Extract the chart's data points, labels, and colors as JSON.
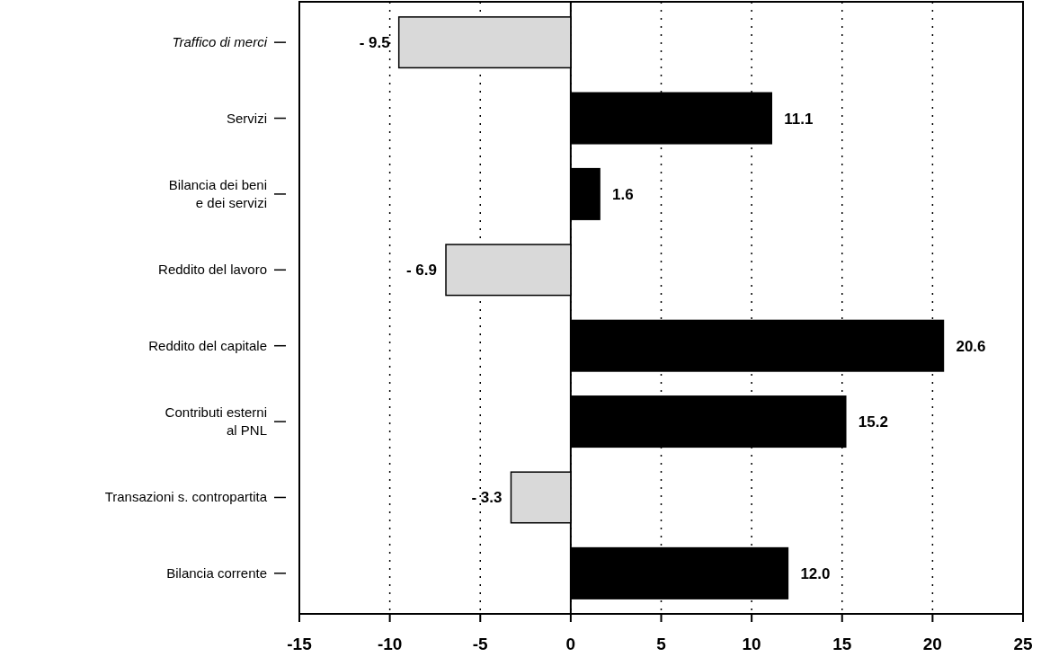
{
  "chart_data": {
    "type": "bar",
    "orientation": "horizontal",
    "categories": [
      "Traffico di merci",
      "Servizi",
      "Bilancia dei beni\ne dei servizi",
      "Reddito del lavoro",
      "Reddito del capitale",
      "Contributi esterni\nal PNL",
      "Transazioni s. contropartita",
      "Bilancia corrente"
    ],
    "values": [
      -9.5,
      11.1,
      1.6,
      -6.9,
      20.6,
      15.2,
      -3.3,
      12.0
    ],
    "colors": [
      "#d9d9d9",
      "#000000",
      "#000000",
      "#d9d9d9",
      "#000000",
      "#000000",
      "#d9d9d9",
      "#000000"
    ],
    "value_labels": [
      "- 9.5",
      "11.1",
      "1.6",
      "- 6.9",
      "20.6",
      "15.2",
      "- 3.3",
      "12.0"
    ],
    "xlim": [
      -15,
      25
    ],
    "xticks": [
      -15,
      -10,
      -5,
      0,
      5,
      10,
      15,
      20,
      25
    ],
    "grid": "x"
  }
}
